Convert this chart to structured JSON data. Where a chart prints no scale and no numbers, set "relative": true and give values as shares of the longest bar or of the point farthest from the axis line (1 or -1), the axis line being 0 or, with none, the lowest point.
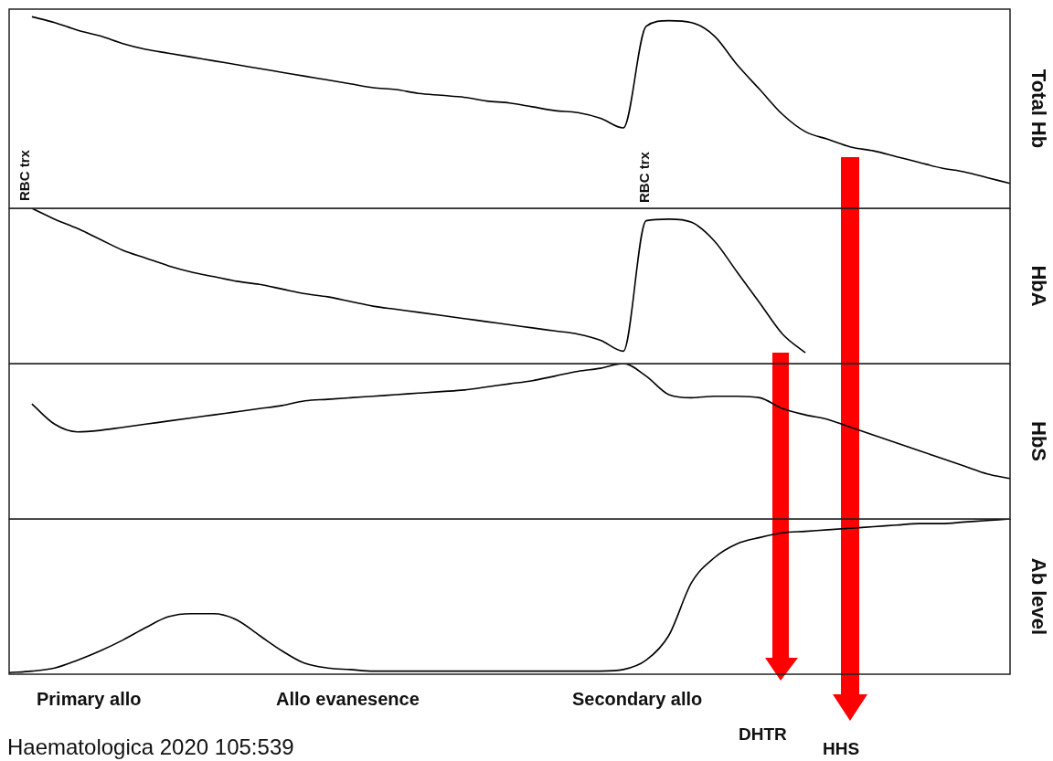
{
  "chart_data": [
    {
      "type": "line",
      "relative": true,
      "tick_labels": false,
      "ylabel": "Total Hb",
      "annotations": [
        "RBC trx",
        "RBC trx"
      ],
      "categories": [
        null,
        null,
        null,
        null,
        null,
        null,
        null,
        null,
        null,
        null,
        null,
        null,
        null,
        null,
        null,
        null,
        null,
        null,
        null,
        null,
        null,
        null,
        null,
        null,
        null,
        null,
        null,
        null,
        null,
        null,
        null,
        null,
        null,
        null,
        null,
        null,
        null,
        null,
        null,
        null,
        null,
        null,
        null,
        null,
        null
      ],
      "series": [
        {
          "color": "#000000",
          "values": [
            null,
            1.0,
            0.97,
            0.93,
            0.9,
            0.86,
            0.83,
            0.81,
            0.79,
            0.77,
            0.75,
            0.73,
            0.71,
            0.69,
            0.67,
            0.65,
            0.63,
            0.62,
            0.6,
            0.59,
            0.58,
            0.56,
            0.55,
            0.53,
            0.51,
            0.5,
            0.47,
            0.42,
            0.95,
            0.98,
            0.97,
            0.9,
            0.75,
            0.62,
            0.49,
            0.4,
            0.36,
            0.32,
            0.3,
            0.27,
            0.24,
            0.21,
            0.19,
            0.16,
            0.13
          ]
        }
      ]
    },
    {
      "type": "line",
      "relative": true,
      "tick_labels": false,
      "ylabel": "HbA",
      "categories": [
        null,
        null,
        null,
        null,
        null,
        null,
        null,
        null,
        null,
        null,
        null,
        null,
        null,
        null,
        null,
        null,
        null,
        null,
        null,
        null,
        null,
        null,
        null,
        null,
        null,
        null,
        null,
        null,
        null,
        null,
        null,
        null,
        null,
        null,
        null,
        null,
        null,
        null,
        null,
        null,
        null,
        null,
        null,
        null,
        null
      ],
      "series": [
        {
          "color": "#000000",
          "values": [
            null,
            1.0,
            0.93,
            0.87,
            0.8,
            0.73,
            0.68,
            0.63,
            0.59,
            0.56,
            0.53,
            0.51,
            0.48,
            0.45,
            0.43,
            0.4,
            0.37,
            0.35,
            0.33,
            0.31,
            0.29,
            0.27,
            0.25,
            0.23,
            0.21,
            0.19,
            0.15,
            0.08,
            0.92,
            0.93,
            0.91,
            0.79,
            0.59,
            0.39,
            0.19,
            0.07,
            null,
            null,
            null,
            null,
            null,
            null,
            null,
            null,
            null
          ]
        }
      ]
    },
    {
      "type": "line",
      "relative": true,
      "tick_labels": false,
      "ylabel": "HbS",
      "categories": [
        null,
        null,
        null,
        null,
        null,
        null,
        null,
        null,
        null,
        null,
        null,
        null,
        null,
        null,
        null,
        null,
        null,
        null,
        null,
        null,
        null,
        null,
        null,
        null,
        null,
        null,
        null,
        null,
        null,
        null,
        null,
        null,
        null,
        null,
        null,
        null,
        null,
        null,
        null,
        null,
        null,
        null,
        null,
        null,
        null
      ],
      "series": [
        {
          "color": "#000000",
          "values": [
            null,
            0.74,
            0.61,
            0.56,
            0.57,
            0.59,
            0.61,
            0.63,
            0.65,
            0.67,
            0.69,
            0.71,
            0.73,
            0.76,
            0.77,
            0.78,
            0.79,
            0.8,
            0.81,
            0.82,
            0.83,
            0.85,
            0.87,
            0.89,
            0.92,
            0.95,
            0.97,
            1.0,
            0.92,
            0.8,
            0.78,
            0.79,
            0.79,
            0.78,
            0.71,
            0.67,
            0.64,
            0.59,
            0.54,
            0.49,
            0.44,
            0.39,
            0.34,
            0.29,
            0.26
          ]
        }
      ]
    },
    {
      "type": "line",
      "relative": true,
      "tick_labels": false,
      "ylabel": "Ab level",
      "annotations": [
        "Primary allo",
        "Allo evanesence",
        "Secondary allo",
        "DHTR",
        "HHS",
        "Haematologica 2020 105:539"
      ],
      "categories": [
        null,
        null,
        null,
        null,
        null,
        null,
        null,
        null,
        null,
        null,
        null,
        null,
        null,
        null,
        null,
        null,
        null,
        null,
        null,
        null,
        null,
        null,
        null,
        null,
        null,
        null,
        null,
        null,
        null,
        null,
        null,
        null,
        null,
        null,
        null,
        null,
        null,
        null,
        null,
        null,
        null,
        null,
        null,
        null,
        null
      ],
      "series": [
        {
          "color": "#000000",
          "values": [
            0.01,
            0.02,
            0.04,
            0.09,
            0.15,
            0.22,
            0.3,
            0.37,
            0.39,
            0.39,
            0.35,
            0.25,
            0.15,
            0.07,
            0.04,
            0.03,
            0.02,
            0.02,
            0.02,
            0.02,
            0.02,
            0.02,
            0.02,
            0.02,
            0.02,
            0.02,
            0.02,
            0.03,
            0.09,
            0.25,
            0.59,
            0.75,
            0.84,
            0.88,
            0.91,
            0.92,
            0.93,
            0.94,
            0.95,
            0.96,
            0.97,
            0.97,
            0.98,
            0.99,
            1.0
          ]
        }
      ]
    }
  ]
}
